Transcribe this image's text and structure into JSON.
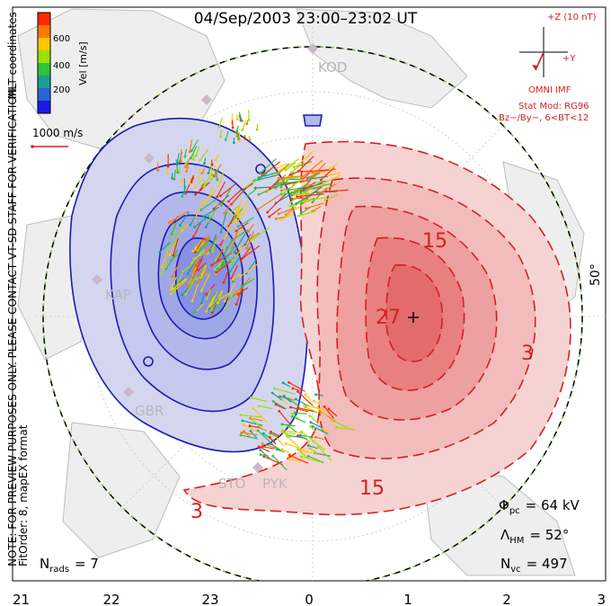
{
  "title": "04/Sep/2003 23:00–23:02 UT",
  "side_note_line1": "NOTE: FOR PREVIEW PURPOSES ONLY. PLEASE CONTACT VT-SD STAFF FOR VERIFICATION.",
  "side_note_line2": "FitOrder: 8, mapEX format",
  "mlt_label": "MLT coordinates",
  "colorbar": {
    "label": "Vel [m/s]",
    "ticks": [
      "600",
      "400",
      "200"
    ],
    "colors": [
      "#ff2a00",
      "#ff7a00",
      "#ffc800",
      "#9ee000",
      "#2ec43c",
      "#18a098",
      "#2a64d8",
      "#1a1ae6"
    ]
  },
  "ref_vector_label": "1000 m/s",
  "imf": {
    "z_label": "+Z (10 nT)",
    "y_label": "+Y",
    "source": "OMNI IMF",
    "model": "Stat Mod: RG96",
    "condition": "Bz−/By−, 6<BT<12"
  },
  "stations": [
    "KOD",
    "KAP",
    "GBR",
    "STO",
    "PYK"
  ],
  "lat_label": "50°",
  "stats": {
    "phi_pc": "Φ",
    "phi_sub": "pc",
    "phi_val": "= 64 kV",
    "lambda": "Λ",
    "lambda_sub": "HM",
    "lambda_val": "= 52°",
    "nvc": "N",
    "nvc_sub": "vc",
    "nvc_val": "= 497",
    "nrads": "N",
    "nrads_sub": "rads",
    "nrads_val": "= 7"
  },
  "chart_data": {
    "type": "contour",
    "mlt_ticks": [
      "21",
      "22",
      "23",
      "0",
      "1",
      "2",
      "3"
    ],
    "contour_labels": [
      "3",
      "15",
      "27",
      "15",
      "3"
    ],
    "colors": {
      "positive": "#d62020",
      "negative": "#1c1cb4",
      "pos_fill": "#f4b3b3",
      "neg_fill": "#b8bdea",
      "boundary": "#6cc23a"
    }
  }
}
